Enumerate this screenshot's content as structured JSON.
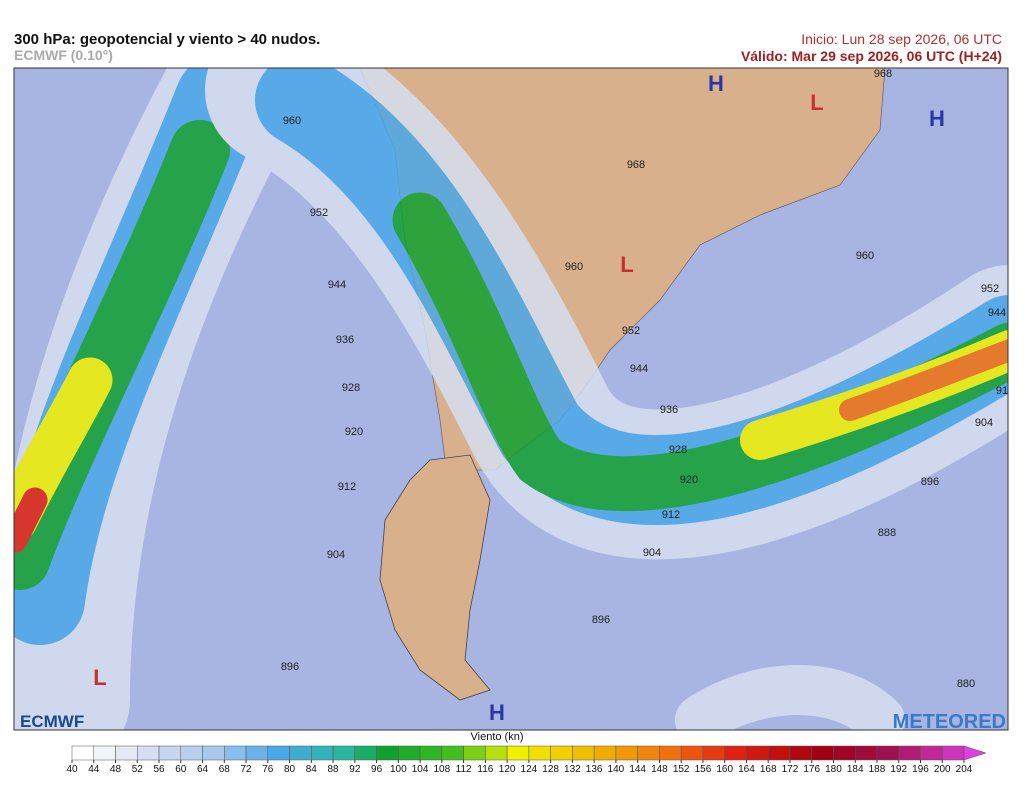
{
  "header": {
    "title": "300 hPa: geopotencial y viento > 40 nudos.",
    "model": "ECMWF (0.10°)",
    "init": "Inicio: Lun 28 sep 2026, 06 UTC",
    "valid": "Válido: Mar 29 sep 2026, 06 UTC (H+24)"
  },
  "map": {
    "contour_labels": [
      "960",
      "952",
      "944",
      "936",
      "928",
      "920",
      "912",
      "904",
      "896",
      "968",
      "968",
      "960",
      "960",
      "952",
      "944",
      "952",
      "944",
      "936",
      "928",
      "920",
      "912",
      "904",
      "888",
      "896",
      "896",
      "880",
      "904",
      "91"
    ],
    "pressure_centers": [
      "H",
      "L",
      "H",
      "L",
      "L",
      "H"
    ]
  },
  "logos": {
    "left": "ECMWF",
    "right": "METEORED"
  },
  "colorbar": {
    "label": "Viento (kn)",
    "ticks": [
      40,
      44,
      48,
      52,
      56,
      60,
      64,
      68,
      72,
      76,
      80,
      84,
      88,
      92,
      96,
      100,
      104,
      108,
      112,
      116,
      120,
      124,
      128,
      132,
      136,
      140,
      144,
      148,
      152,
      156,
      160,
      164,
      168,
      172,
      176,
      180,
      184,
      188,
      192,
      196,
      200,
      204
    ],
    "anchors": [
      40,
      52,
      64,
      76,
      88,
      96,
      108,
      120,
      132,
      148,
      160,
      176,
      188,
      204
    ],
    "colors": [
      "#ffffff",
      "#d6dff0",
      "#a9c8ec",
      "#4aa8e8",
      "#2ab5a0",
      "#10a030",
      "#40c020",
      "#f0f000",
      "#f0c000",
      "#f07010",
      "#e02010",
      "#a00010",
      "#a01050",
      "#e040e0"
    ]
  }
}
